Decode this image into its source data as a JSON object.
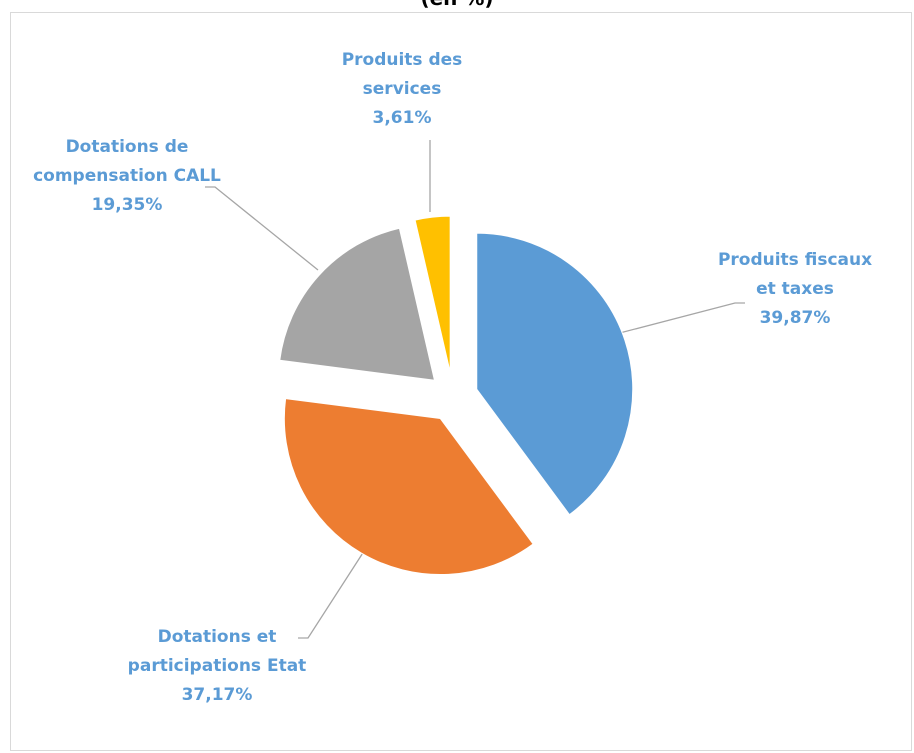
{
  "chart_data": {
    "type": "pie",
    "title": "(en %)",
    "categories": [
      "Produits fiscaux et taxes",
      "Dotations et participations Etat",
      "Dotations de compensation CALL",
      "Produits des services"
    ],
    "values": [
      39.87,
      37.17,
      19.35,
      3.61
    ],
    "value_labels": [
      "39,87%",
      "37,17%",
      "19,35%",
      "3,61%"
    ],
    "colors": [
      "#5b9bd5",
      "#ed7d31",
      "#a5a5a5",
      "#ffc000"
    ],
    "label_color": "#5b9bd5"
  }
}
